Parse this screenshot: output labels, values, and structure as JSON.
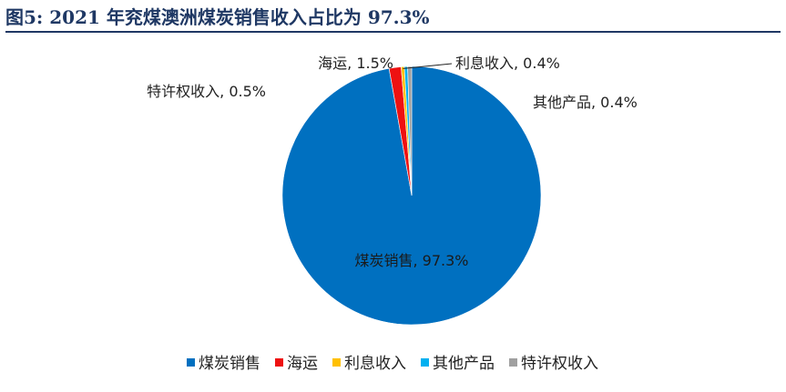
{
  "title": "图5:  2021 年兖煤澳洲煤炭销售收入占比为 97.3%",
  "chart_data": {
    "type": "pie",
    "title": "",
    "slices": [
      {
        "name": "煤炭销售",
        "value": 97.3,
        "label": "煤炭销售, 97.3%",
        "color": "#0070c0"
      },
      {
        "name": "海运",
        "value": 1.5,
        "label": "海运, 1.5%",
        "color": "#ee1111"
      },
      {
        "name": "利息收入",
        "value": 0.4,
        "label": "利息收入, 0.4%",
        "color": "#ffc000"
      },
      {
        "name": "其他产品",
        "value": 0.4,
        "label": "其他产品, 0.4%",
        "color": "#00b0f0"
      },
      {
        "name": "特许权收入",
        "value": 0.5,
        "label": "特许权收入, 0.5%",
        "color": "#a0a0a0"
      }
    ],
    "legend": [
      "煤炭销售",
      "海运",
      "利息收入",
      "其他产品",
      "特许权收入"
    ],
    "legend_position": "bottom"
  }
}
